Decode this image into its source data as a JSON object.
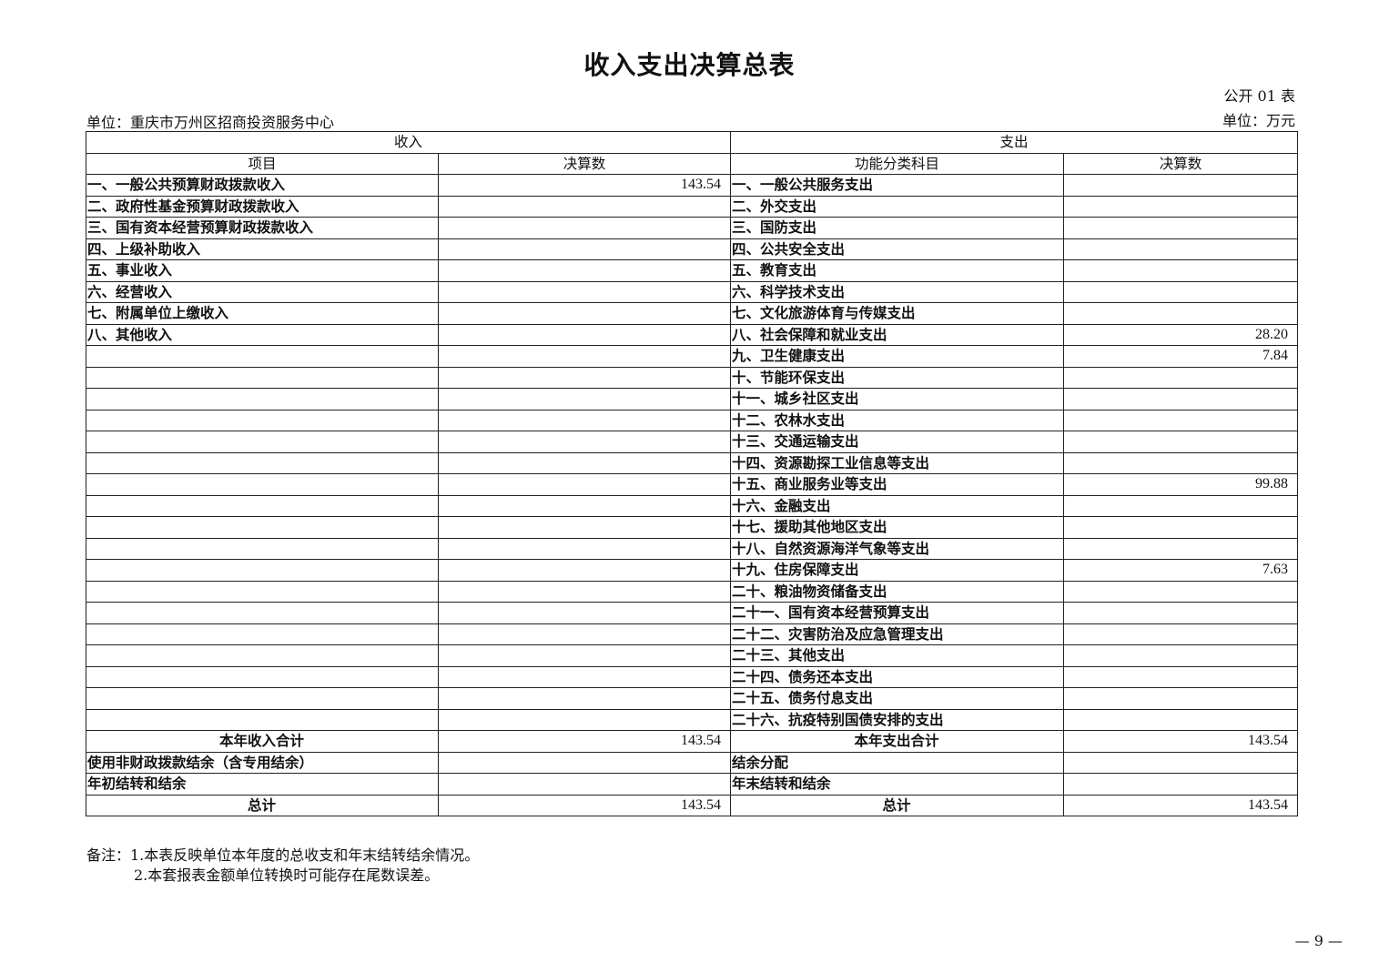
{
  "title": "收入支出决算总表",
  "form_no": "公开 01 表",
  "unit_org": "单位：重庆市万州区招商投资服务中心",
  "unit_currency": "单位：万元",
  "table": {
    "income_header": "收入",
    "expense_header": "支出",
    "col_item": "项目",
    "col_amount": "决算数",
    "col_func": "功能分类科目",
    "col_amount2": "决算数",
    "rows": [
      {
        "inc": "一、一般公共预算财政拨款收入",
        "inc_val": "143.54",
        "exp": "一、一般公共服务支出",
        "exp_val": ""
      },
      {
        "inc": "二、政府性基金预算财政拨款收入",
        "inc_val": "",
        "exp": "二、外交支出",
        "exp_val": ""
      },
      {
        "inc": "三、国有资本经营预算财政拨款收入",
        "inc_val": "",
        "exp": "三、国防支出",
        "exp_val": ""
      },
      {
        "inc": "四、上级补助收入",
        "inc_val": "",
        "exp": "四、公共安全支出",
        "exp_val": ""
      },
      {
        "inc": "五、事业收入",
        "inc_val": "",
        "exp": "五、教育支出",
        "exp_val": ""
      },
      {
        "inc": "六、经营收入",
        "inc_val": "",
        "exp": "六、科学技术支出",
        "exp_val": ""
      },
      {
        "inc": "七、附属单位上缴收入",
        "inc_val": "",
        "exp": "七、文化旅游体育与传媒支出",
        "exp_val": ""
      },
      {
        "inc": "八、其他收入",
        "inc_val": "",
        "exp": "八、社会保障和就业支出",
        "exp_val": "28.20"
      },
      {
        "inc": "",
        "inc_val": "",
        "exp": "九、卫生健康支出",
        "exp_val": "7.84"
      },
      {
        "inc": "",
        "inc_val": "",
        "exp": "十、节能环保支出",
        "exp_val": ""
      },
      {
        "inc": "",
        "inc_val": "",
        "exp": "十一、城乡社区支出",
        "exp_val": ""
      },
      {
        "inc": "",
        "inc_val": "",
        "exp": "十二、农林水支出",
        "exp_val": ""
      },
      {
        "inc": "",
        "inc_val": "",
        "exp": "十三、交通运输支出",
        "exp_val": ""
      },
      {
        "inc": "",
        "inc_val": "",
        "exp": "十四、资源勘探工业信息等支出",
        "exp_val": ""
      },
      {
        "inc": "",
        "inc_val": "",
        "exp": "十五、商业服务业等支出",
        "exp_val": "99.88"
      },
      {
        "inc": "",
        "inc_val": "",
        "exp": "十六、金融支出",
        "exp_val": ""
      },
      {
        "inc": "",
        "inc_val": "",
        "exp": "十七、援助其他地区支出",
        "exp_val": ""
      },
      {
        "inc": "",
        "inc_val": "",
        "exp": "十八、自然资源海洋气象等支出",
        "exp_val": ""
      },
      {
        "inc": "",
        "inc_val": "",
        "exp": "十九、住房保障支出",
        "exp_val": "7.63"
      },
      {
        "inc": "",
        "inc_val": "",
        "exp": "二十、粮油物资储备支出",
        "exp_val": ""
      },
      {
        "inc": "",
        "inc_val": "",
        "exp": "二十一、国有资本经营预算支出",
        "exp_val": ""
      },
      {
        "inc": "",
        "inc_val": "",
        "exp": "二十二、灾害防治及应急管理支出",
        "exp_val": ""
      },
      {
        "inc": "",
        "inc_val": "",
        "exp": "二十三、其他支出",
        "exp_val": ""
      },
      {
        "inc": "",
        "inc_val": "",
        "exp": "二十四、债务还本支出",
        "exp_val": ""
      },
      {
        "inc": "",
        "inc_val": "",
        "exp": "二十五、债务付息支出",
        "exp_val": ""
      },
      {
        "inc": "",
        "inc_val": "",
        "exp": "二十六、抗疫特别国债安排的支出",
        "exp_val": ""
      },
      {
        "inc": "本年收入合计",
        "inc_val": "143.54",
        "exp": "本年支出合计",
        "exp_val": "143.54",
        "center": true
      },
      {
        "inc": "使用非财政拨款结余（含专用结余）",
        "inc_val": "",
        "exp": "结余分配",
        "exp_val": ""
      },
      {
        "inc": "年初结转和结余",
        "inc_val": "",
        "exp": "年末结转和结余",
        "exp_val": ""
      },
      {
        "inc": "总计",
        "inc_val": "143.54",
        "exp": "总计",
        "exp_val": "143.54",
        "center": true
      }
    ]
  },
  "notes": {
    "line1": "备注：1.本表反映单位本年度的总收支和年末结转结余情况。",
    "line2": "2.本套报表金额单位转换时可能存在尾数误差。"
  },
  "page_number": "— 9 —"
}
